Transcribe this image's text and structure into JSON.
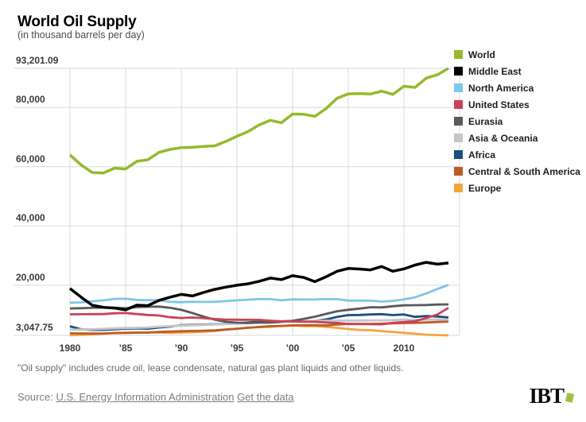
{
  "header": {
    "title": "World Oil Supply",
    "subtitle": "(in thousand barrels per day)"
  },
  "chart_data": {
    "type": "line",
    "title": "World Oil Supply",
    "units": "thousand barrels per day",
    "grid": true,
    "legend_position": "right",
    "grid_color": "#d9d9d9",
    "y_axis": {
      "max": 93201.09,
      "min": 3047.75,
      "ticks": [
        {
          "label": "93,201.09",
          "value": 93201.09
        },
        {
          "label": "80,000",
          "value": 80000
        },
        {
          "label": "60,000",
          "value": 60000
        },
        {
          "label": "40,000",
          "value": 40000
        },
        {
          "label": "20,000",
          "value": 20000
        },
        {
          "label": "3,047.75",
          "value": 3047.75
        }
      ]
    },
    "x_axis": {
      "range": [
        1980,
        2015
      ],
      "gridline_years": [
        1980,
        1985,
        1990,
        1995,
        2000,
        2005,
        2010,
        2015
      ],
      "ticks": [
        {
          "label": "1980",
          "year": 1980
        },
        {
          "label": "’85",
          "year": 1985
        },
        {
          "label": "’90",
          "year": 1990
        },
        {
          "label": "’95",
          "year": 1995
        },
        {
          "label": "’00",
          "year": 2000
        },
        {
          "label": "’05",
          "year": 2005
        },
        {
          "label": "2010",
          "year": 2010
        }
      ]
    },
    "years": [
      1980,
      1981,
      1982,
      1983,
      1984,
      1985,
      1986,
      1987,
      1988,
      1989,
      1990,
      1991,
      1992,
      1993,
      1994,
      1995,
      1996,
      1997,
      1998,
      1999,
      2000,
      2001,
      2002,
      2003,
      2004,
      2005,
      2006,
      2007,
      2008,
      2009,
      2010,
      2011,
      2012,
      2013,
      2014
    ],
    "series": [
      {
        "name": "World",
        "color": "#96b92d",
        "width": 3.5,
        "values": [
          63987,
          60567,
          58019,
          57862,
          59507,
          59227,
          61795,
          62336,
          64827,
          65826,
          66412,
          66544,
          66842,
          67038,
          68517,
          70266,
          71877,
          74118,
          75656,
          74849,
          77762,
          77681,
          76991,
          79606,
          83114,
          84595,
          84661,
          84540,
          85507,
          84389,
          87152,
          86754,
          89905,
          91020,
          93201.09
        ]
      },
      {
        "name": "Middle East",
        "color": "#000000",
        "width": 3.5,
        "values": [
          18882,
          15963,
          13204,
          12522,
          12269,
          11652,
          13247,
          13086,
          14887,
          15955,
          16880,
          16351,
          17538,
          18575,
          19321,
          19991,
          20463,
          21313,
          22399,
          21881,
          23192,
          22606,
          21180,
          22810,
          24701,
          25633,
          25455,
          25156,
          26322,
          24700,
          25512,
          26790,
          27704,
          27096,
          27488
        ]
      },
      {
        "name": "North America",
        "color": "#7fc6e8",
        "width": 2.8,
        "values": [
          14063,
          14193,
          14561,
          14884,
          15354,
          15449,
          15009,
          14947,
          14918,
          14383,
          14263,
          14404,
          14335,
          14385,
          14617,
          14867,
          15101,
          15301,
          15270,
          14880,
          15197,
          15148,
          15178,
          15300,
          15246,
          14795,
          14779,
          14777,
          14448,
          14698,
          15201,
          15899,
          17199,
          18701,
          20101
        ]
      },
      {
        "name": "United States",
        "color": "#cb4256",
        "width": 2.8,
        "values": [
          10170,
          10181,
          10199,
          10247,
          10509,
          10581,
          10231,
          9944,
          9765,
          9159,
          8914,
          9076,
          8868,
          8582,
          8389,
          8322,
          8295,
          8269,
          8011,
          7731,
          7733,
          7669,
          7626,
          7400,
          7228,
          6895,
          6841,
          6860,
          6784,
          7263,
          7555,
          7858,
          8905,
          10069,
          12343
        ]
      },
      {
        "name": "Eurasia",
        "color": "#595a5c",
        "width": 2.8,
        "values": [
          12141,
          12228,
          12331,
          12444,
          12399,
          12200,
          12583,
          12704,
          12751,
          12351,
          11653,
          10598,
          9399,
          8351,
          7604,
          7351,
          7249,
          7347,
          7403,
          7605,
          7997,
          8602,
          9352,
          10303,
          11198,
          11696,
          12103,
          12550,
          12502,
          12903,
          13201,
          13248,
          13302,
          13448,
          13501
        ]
      },
      {
        "name": "Asia & Oceania",
        "color": "#c5c6c8",
        "width": 2.8,
        "values": [
          4951,
          5003,
          5102,
          5251,
          5401,
          5549,
          5601,
          5702,
          5998,
          6152,
          6349,
          6451,
          6601,
          6702,
          6851,
          7001,
          7148,
          7301,
          7399,
          7602,
          7901,
          7898,
          7951,
          7949,
          8001,
          8049,
          8052,
          8098,
          8101,
          8199,
          8349,
          8248,
          8301,
          8352,
          8401
        ]
      },
      {
        "name": "Africa",
        "color": "#1d4f7c",
        "width": 2.8,
        "values": [
          6102,
          5098,
          4901,
          4898,
          5102,
          5301,
          5399,
          5302,
          5701,
          6001,
          6499,
          6601,
          6702,
          6798,
          6901,
          7101,
          7401,
          7702,
          7898,
          7801,
          7902,
          7898,
          7901,
          8401,
          9301,
          9899,
          9951,
          10101,
          10199,
          9901,
          10101,
          9302,
          9601,
          9401,
          9102
        ]
      },
      {
        "name": "Central & South America",
        "color": "#bd5b28",
        "width": 2.8,
        "values": [
          3748,
          3701,
          3652,
          3702,
          3849,
          3901,
          3948,
          3999,
          4201,
          4349,
          4451,
          4552,
          4601,
          4748,
          5001,
          5299,
          5601,
          5898,
          6148,
          6201,
          6401,
          6449,
          6501,
          6399,
          6702,
          6901,
          6948,
          6899,
          7001,
          7101,
          7201,
          7298,
          7401,
          7549,
          7701
        ]
      },
      {
        "name": "Europe",
        "color": "#f3a43e",
        "width": 2.8,
        "values": [
          3102,
          3201,
          3399,
          3601,
          3798,
          3901,
          3998,
          4099,
          4001,
          3899,
          4002,
          4101,
          4301,
          4498,
          5001,
          5301,
          5699,
          5801,
          5898,
          6299,
          6401,
          6199,
          6201,
          5899,
          5601,
          5199,
          4901,
          4801,
          4501,
          4201,
          3901,
          3601,
          3301,
          3148,
          3047.75
        ]
      }
    ]
  },
  "footer": {
    "note": "\"Oil supply\" includes crude oil, lease condensate, natural gas plant liquids and other liquids.",
    "source_label": "Source:",
    "source_link": "U.S. Energy Information Administration",
    "data_link": "Get the data",
    "logo_text": "IBT"
  }
}
